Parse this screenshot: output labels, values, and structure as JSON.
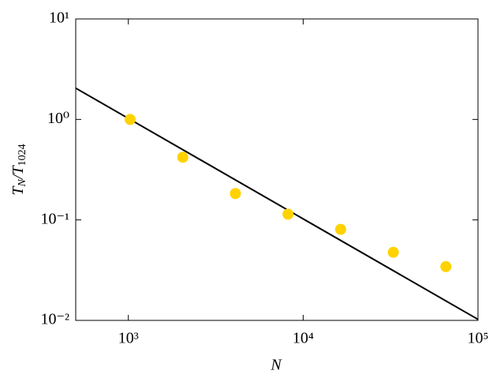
{
  "chart_data": {
    "type": "scatter",
    "x_label": "N",
    "y_label": [
      "T",
      "N",
      "/T",
      "1024"
    ],
    "xscale": "log",
    "yscale": "log",
    "xlim": [
      500,
      100000
    ],
    "ylim": [
      0.01,
      10
    ],
    "xticks": [
      {
        "value": 1000,
        "label": "10³"
      },
      {
        "value": 10000,
        "label": "10⁴"
      },
      {
        "value": 100000,
        "label": "10⁵"
      }
    ],
    "yticks": [
      {
        "value": 0.01,
        "label": "10⁻²"
      },
      {
        "value": 0.1,
        "label": "10⁻¹"
      },
      {
        "value": 1,
        "label": "10⁰"
      },
      {
        "value": 10,
        "label": "10¹"
      }
    ],
    "series": [
      {
        "type": "line",
        "color": "#000000",
        "x": [
          500,
          100000
        ],
        "values": [
          2.048,
          0.01024
        ]
      },
      {
        "type": "scatter",
        "color": "#ffd200",
        "x": [
          1024,
          2048,
          4096,
          8192,
          16384,
          32768,
          65536
        ],
        "values": [
          1.0,
          0.42,
          0.183,
          0.114,
          0.0805,
          0.0476,
          0.0343
        ]
      }
    ]
  }
}
